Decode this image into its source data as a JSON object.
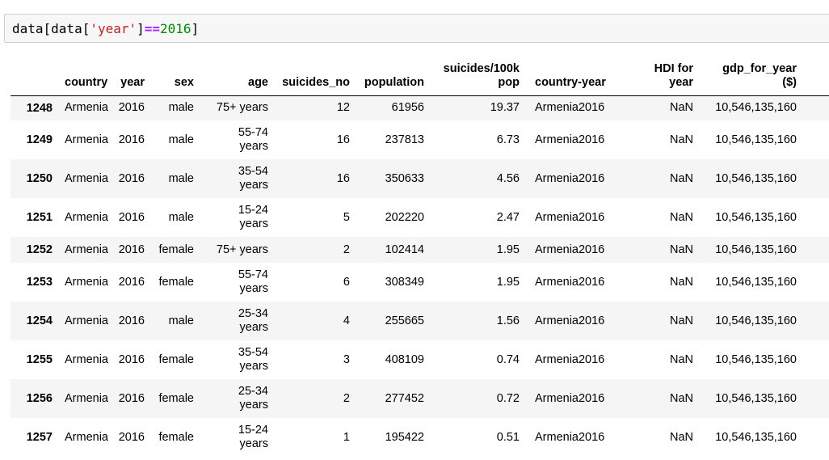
{
  "cell": {
    "code_prefix": "data[data[",
    "code_string": "'year'",
    "code_mid": "]",
    "code_operator": "==",
    "code_number": "2016",
    "code_suffix": "]"
  },
  "table": {
    "columns": [
      {
        "l1": "",
        "l2": ""
      },
      {
        "l1": "",
        "l2": "country"
      },
      {
        "l1": "",
        "l2": "year"
      },
      {
        "l1": "",
        "l2": "sex"
      },
      {
        "l1": "",
        "l2": "age"
      },
      {
        "l1": "",
        "l2": "suicides_no"
      },
      {
        "l1": "",
        "l2": "population"
      },
      {
        "l1": "suicides/100k",
        "l2": "pop"
      },
      {
        "l1": "",
        "l2": "country-year"
      },
      {
        "l1": "HDI for",
        "l2": "year"
      },
      {
        "l1": "gdp_for_year",
        "l2": "($)"
      }
    ],
    "rows": [
      {
        "index": "1248",
        "country": "Armenia",
        "year": "2016",
        "sex": "male",
        "age_1": "75+ years",
        "age_2": "",
        "suicides_no": "12",
        "population": "61956",
        "rate": "19.37",
        "country_year": "Armenia2016",
        "hdi": "NaN",
        "gdp": "10,546,135,160"
      },
      {
        "index": "1249",
        "country": "Armenia",
        "year": "2016",
        "sex": "male",
        "age_1": "55-74",
        "age_2": "years",
        "suicides_no": "16",
        "population": "237813",
        "rate": "6.73",
        "country_year": "Armenia2016",
        "hdi": "NaN",
        "gdp": "10,546,135,160"
      },
      {
        "index": "1250",
        "country": "Armenia",
        "year": "2016",
        "sex": "male",
        "age_1": "35-54",
        "age_2": "years",
        "suicides_no": "16",
        "population": "350633",
        "rate": "4.56",
        "country_year": "Armenia2016",
        "hdi": "NaN",
        "gdp": "10,546,135,160"
      },
      {
        "index": "1251",
        "country": "Armenia",
        "year": "2016",
        "sex": "male",
        "age_1": "15-24",
        "age_2": "years",
        "suicides_no": "5",
        "population": "202220",
        "rate": "2.47",
        "country_year": "Armenia2016",
        "hdi": "NaN",
        "gdp": "10,546,135,160"
      },
      {
        "index": "1252",
        "country": "Armenia",
        "year": "2016",
        "sex": "female",
        "age_1": "75+ years",
        "age_2": "",
        "suicides_no": "2",
        "population": "102414",
        "rate": "1.95",
        "country_year": "Armenia2016",
        "hdi": "NaN",
        "gdp": "10,546,135,160"
      },
      {
        "index": "1253",
        "country": "Armenia",
        "year": "2016",
        "sex": "female",
        "age_1": "55-74",
        "age_2": "years",
        "suicides_no": "6",
        "population": "308349",
        "rate": "1.95",
        "country_year": "Armenia2016",
        "hdi": "NaN",
        "gdp": "10,546,135,160"
      },
      {
        "index": "1254",
        "country": "Armenia",
        "year": "2016",
        "sex": "male",
        "age_1": "25-34",
        "age_2": "years",
        "suicides_no": "4",
        "population": "255665",
        "rate": "1.56",
        "country_year": "Armenia2016",
        "hdi": "NaN",
        "gdp": "10,546,135,160"
      },
      {
        "index": "1255",
        "country": "Armenia",
        "year": "2016",
        "sex": "female",
        "age_1": "35-54",
        "age_2": "years",
        "suicides_no": "3",
        "population": "408109",
        "rate": "0.74",
        "country_year": "Armenia2016",
        "hdi": "NaN",
        "gdp": "10,546,135,160"
      },
      {
        "index": "1256",
        "country": "Armenia",
        "year": "2016",
        "sex": "female",
        "age_1": "25-34",
        "age_2": "years",
        "suicides_no": "2",
        "population": "277452",
        "rate": "0.72",
        "country_year": "Armenia2016",
        "hdi": "NaN",
        "gdp": "10,546,135,160"
      },
      {
        "index": "1257",
        "country": "Armenia",
        "year": "2016",
        "sex": "female",
        "age_1": "15-24",
        "age_2": "years",
        "suicides_no": "1",
        "population": "195422",
        "rate": "0.51",
        "country_year": "Armenia2016",
        "hdi": "NaN",
        "gdp": "10,546,135,160"
      }
    ]
  }
}
